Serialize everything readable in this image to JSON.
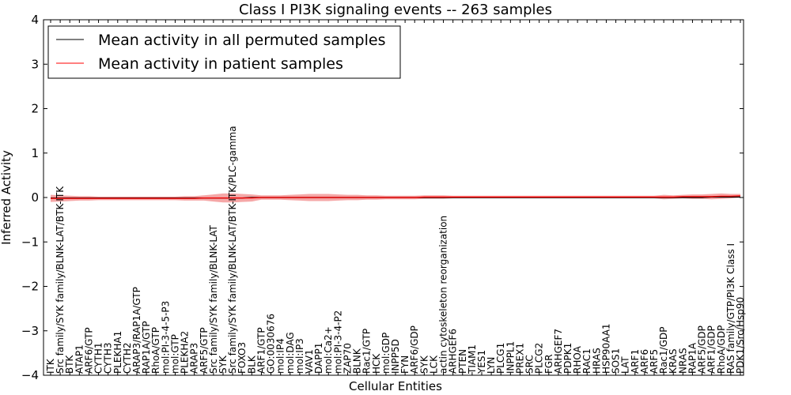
{
  "chart_data": {
    "type": "line",
    "title": "Class I PI3K signaling events -- 263 samples",
    "xlabel": "Cellular Entities",
    "ylabel": "Inferred Activity",
    "ylim": [
      -4,
      4
    ],
    "yticks": [
      "4",
      "3",
      "2",
      "1",
      "0",
      "−1",
      "−2",
      "−3",
      "−4"
    ],
    "ytick_values": [
      4,
      3,
      2,
      1,
      0,
      -1,
      -2,
      -3,
      -4
    ],
    "grid": false,
    "legend_position": "top-left",
    "categories": [
      "ITK",
      "Src family/SYK family/BLNK-LAT/BTK-ITK",
      "BTK",
      "ATAP1",
      "ARF6/GTP",
      "CYTH1",
      "CYTH3",
      "PLEKHA1",
      "CYTH2",
      "ARAP3/RAP1A/GTP",
      "RAP1A/GTP",
      "RhoA/GTP",
      "mol:PI-3-4-5-P3",
      "mol:GTP",
      "PLEKHA2",
      "ARAP3",
      "ARF5/GTP",
      "Src family/SYK family/BLNK-LAT",
      "SYK",
      "Src family/SYK family/BLNK-LAT/BTK-ITK/PLC-gamma",
      "FOXO3",
      "BLK",
      "ARF1/GTP",
      "GO:0030676",
      "mol:IP4",
      "mol:DAG",
      "mol:IP3",
      "VAV1",
      "DAPP1",
      "mol:Ca2+",
      "mol:PI-3-4-P2",
      "ZAP70",
      "BLNK",
      "Rac1/GTP",
      "HCK",
      "mol:GDP",
      "INPP5D",
      "FYN",
      "ARF6/GDP",
      "SYK",
      "LCK",
      "actin cytoskeleton reorganization",
      "ARHGEF6",
      "PTEN",
      "TIAM1",
      "YES1",
      "LYN",
      "PLCG1",
      "INPPL1",
      "PREX1",
      "SRC",
      "PLCG2",
      "FGR",
      "ARHGEF7",
      "PDPK1",
      "RHOA",
      "RAC1",
      "HRAS",
      "HSP90AA1",
      "SOS1",
      "LAT",
      "ARF1",
      "ARF6",
      "ARF5",
      "Rac1/GDP",
      "KRAS",
      "NRAS",
      "RAP1A",
      "ARF5/GDP",
      "ARF1/GDP",
      "RhoA/GDP",
      "RAS family/GTP/PI3K Class I",
      "PDK1/Src/Hsp90"
    ],
    "series": [
      {
        "name": "Mean activity in all permuted samples",
        "color": "#000000",
        "values": [
          -0.01,
          -0.01,
          -0.01,
          -0.01,
          -0.01,
          -0.01,
          -0.01,
          -0.01,
          -0.01,
          -0.01,
          -0.01,
          -0.01,
          -0.01,
          -0.01,
          -0.01,
          -0.01,
          -0.01,
          -0.01,
          -0.01,
          -0.01,
          -0.01,
          0,
          0,
          0,
          0,
          0,
          0,
          0,
          0,
          0,
          0,
          0,
          0,
          0,
          0,
          0,
          0,
          0,
          0,
          0,
          0,
          0,
          0,
          0,
          0,
          0,
          0,
          0,
          0,
          0,
          0,
          0,
          0,
          0,
          0,
          0,
          0,
          0,
          0,
          0,
          0,
          0,
          0,
          0,
          0,
          0,
          0,
          0,
          0,
          0.01,
          0.01,
          0.01,
          0.01
        ],
        "band": 0.02
      },
      {
        "name": "Mean activity in patient samples",
        "color": "#ff0000",
        "values": [
          -0.02,
          -0.02,
          -0.02,
          -0.02,
          -0.02,
          -0.02,
          -0.02,
          -0.02,
          -0.02,
          -0.02,
          -0.02,
          -0.02,
          -0.02,
          -0.02,
          -0.02,
          -0.02,
          -0.01,
          -0.01,
          -0.01,
          -0.01,
          -0.01,
          -0.01,
          0,
          0,
          0,
          0,
          0,
          0,
          0,
          0,
          0,
          0,
          0,
          0,
          0,
          0,
          0,
          0,
          0,
          0.01,
          0.01,
          0.01,
          0.01,
          0.01,
          0.01,
          0.01,
          0.01,
          0.01,
          0.01,
          0.01,
          0.01,
          0.01,
          0.01,
          0.01,
          0.01,
          0.01,
          0.01,
          0.01,
          0.01,
          0.01,
          0.01,
          0.01,
          0.01,
          0.01,
          0.01,
          0.01,
          0.02,
          0.02,
          0.02,
          0.02,
          0.03,
          0.03,
          0.04
        ],
        "band": [
          0.08,
          0.07,
          0.06,
          0.05,
          0.05,
          0.04,
          0.04,
          0.04,
          0.04,
          0.04,
          0.04,
          0.04,
          0.04,
          0.04,
          0.05,
          0.05,
          0.06,
          0.08,
          0.1,
          0.1,
          0.09,
          0.08,
          0.05,
          0.05,
          0.05,
          0.06,
          0.07,
          0.08,
          0.08,
          0.08,
          0.07,
          0.06,
          0.06,
          0.05,
          0.05,
          0.04,
          0.04,
          0.04,
          0.04,
          0.04,
          0.04,
          0.04,
          0.03,
          0.03,
          0.03,
          0.03,
          0.03,
          0.03,
          0.03,
          0.03,
          0.03,
          0.03,
          0.03,
          0.03,
          0.03,
          0.03,
          0.03,
          0.03,
          0.03,
          0.03,
          0.03,
          0.03,
          0.03,
          0.03,
          0.05,
          0.04,
          0.04,
          0.05,
          0.05,
          0.06,
          0.06,
          0.05,
          0.04
        ]
      }
    ]
  }
}
